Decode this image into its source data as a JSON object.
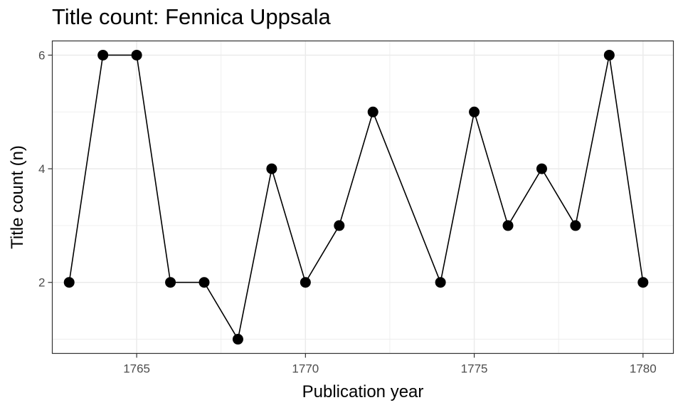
{
  "chart_data": {
    "type": "line",
    "title": "Title count: Fennica Uppsala",
    "xlabel": "Publication year",
    "ylabel": "Title count (n)",
    "x_ticks": [
      1765,
      1770,
      1775,
      1780
    ],
    "y_ticks": [
      2,
      4,
      6
    ],
    "xlim": [
      1762.5,
      1780.9
    ],
    "ylim": [
      0.75,
      6.25
    ],
    "grid": true,
    "legend": "none",
    "line_color": "#000000",
    "grid_color": "#ebebeb",
    "x": [
      1763,
      1764,
      1765,
      1766,
      1767,
      1768,
      1769,
      1770,
      1771,
      1772,
      1774,
      1775,
      1776,
      1777,
      1778,
      1779,
      1780
    ],
    "y": [
      2,
      6,
      6,
      2,
      2,
      1,
      4,
      2,
      3,
      5,
      2,
      5,
      3,
      4,
      3,
      6,
      2
    ]
  }
}
